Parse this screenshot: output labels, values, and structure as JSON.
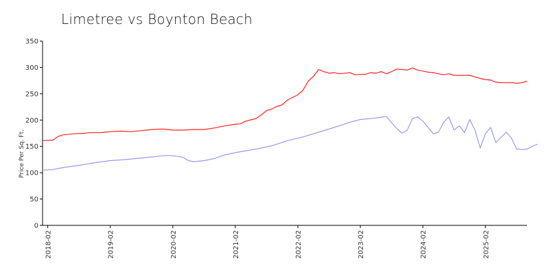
{
  "chart_data": {
    "type": "line",
    "title": "Limetree vs Boynton Beach",
    "xlabel": "",
    "ylabel": "Price Per Sq. Ft.",
    "ylim": [
      0,
      350
    ],
    "yticks": [
      0,
      50,
      100,
      150,
      200,
      250,
      300,
      350
    ],
    "xlim": [
      "2018-01",
      "2025-10"
    ],
    "xticks": [
      "2018-02",
      "2019-02",
      "2020-02",
      "2021-02",
      "2022-02",
      "2023-02",
      "2024-02",
      "2025-02"
    ],
    "grid": false,
    "legend": "none",
    "series": [
      {
        "color": "#ff2020",
        "points": [
          [
            "2018-01",
            161
          ],
          [
            "2018-03",
            162
          ],
          [
            "2018-04",
            169
          ],
          [
            "2018-05",
            172
          ],
          [
            "2018-07",
            174
          ],
          [
            "2018-09",
            175
          ],
          [
            "2018-10",
            176
          ],
          [
            "2018-12",
            176
          ],
          [
            "2019-01",
            177
          ],
          [
            "2019-02",
            178
          ],
          [
            "2019-04",
            179
          ],
          [
            "2019-06",
            178
          ],
          [
            "2019-08",
            180
          ],
          [
            "2019-10",
            182
          ],
          [
            "2019-12",
            183
          ],
          [
            "2020-02",
            181
          ],
          [
            "2020-04",
            181
          ],
          [
            "2020-06",
            182
          ],
          [
            "2020-08",
            182
          ],
          [
            "2020-10",
            185
          ],
          [
            "2020-12",
            189
          ],
          [
            "2021-02",
            192
          ],
          [
            "2021-03",
            193
          ],
          [
            "2021-04",
            198
          ],
          [
            "2021-06",
            203
          ],
          [
            "2021-07",
            210
          ],
          [
            "2021-08",
            218
          ],
          [
            "2021-09",
            221
          ],
          [
            "2021-10",
            226
          ],
          [
            "2021-11",
            229
          ],
          [
            "2021-12",
            238
          ],
          [
            "2022-02",
            248
          ],
          [
            "2022-03",
            257
          ],
          [
            "2022-04",
            274
          ],
          [
            "2022-05",
            283
          ],
          [
            "2022-06",
            296
          ],
          [
            "2022-07",
            292
          ],
          [
            "2022-08",
            289
          ],
          [
            "2022-09",
            290
          ],
          [
            "2022-10",
            288
          ],
          [
            "2022-12",
            290
          ],
          [
            "2023-01",
            286
          ],
          [
            "2023-03",
            287
          ],
          [
            "2023-04",
            290
          ],
          [
            "2023-05",
            289
          ],
          [
            "2023-06",
            292
          ],
          [
            "2023-07",
            288
          ],
          [
            "2023-08",
            292
          ],
          [
            "2023-09",
            297
          ],
          [
            "2023-11",
            295
          ],
          [
            "2023-12",
            299
          ],
          [
            "2024-01",
            295
          ],
          [
            "2024-03",
            291
          ],
          [
            "2024-04",
            290
          ],
          [
            "2024-05",
            288
          ],
          [
            "2024-06",
            286
          ],
          [
            "2024-07",
            288
          ],
          [
            "2024-08",
            285
          ],
          [
            "2024-10",
            285
          ],
          [
            "2024-11",
            285
          ],
          [
            "2025-01",
            279
          ],
          [
            "2025-02",
            277
          ],
          [
            "2025-03",
            276
          ],
          [
            "2025-04",
            272
          ],
          [
            "2025-05",
            271
          ],
          [
            "2025-06",
            271
          ],
          [
            "2025-07",
            271
          ],
          [
            "2025-08",
            270
          ],
          [
            "2025-09",
            271
          ],
          [
            "2025-10",
            274
          ]
        ]
      },
      {
        "color": "#9999ee",
        "points": [
          [
            "2018-01",
            105
          ],
          [
            "2018-03",
            106
          ],
          [
            "2018-05",
            110
          ],
          [
            "2018-08",
            114
          ],
          [
            "2018-11",
            119
          ],
          [
            "2019-02",
            123
          ],
          [
            "2019-05",
            125
          ],
          [
            "2019-08",
            128
          ],
          [
            "2019-11",
            131
          ],
          [
            "2020-01",
            133
          ],
          [
            "2020-03",
            131
          ],
          [
            "2020-04",
            129
          ],
          [
            "2020-05",
            123
          ],
          [
            "2020-06",
            121
          ],
          [
            "2020-08",
            123
          ],
          [
            "2020-10",
            127
          ],
          [
            "2020-12",
            134
          ],
          [
            "2021-03",
            140
          ],
          [
            "2021-06",
            145
          ],
          [
            "2021-09",
            151
          ],
          [
            "2021-12",
            161
          ],
          [
            "2022-03",
            168
          ],
          [
            "2022-06",
            177
          ],
          [
            "2022-09",
            186
          ],
          [
            "2022-12",
            196
          ],
          [
            "2023-02",
            201
          ],
          [
            "2023-05",
            204
          ],
          [
            "2023-07",
            207
          ],
          [
            "2023-08",
            195
          ],
          [
            "2023-09",
            184
          ],
          [
            "2023-10",
            175
          ],
          [
            "2023-11",
            181
          ],
          [
            "2023-12",
            203
          ],
          [
            "2024-01",
            206
          ],
          [
            "2024-02",
            198
          ],
          [
            "2024-03",
            186
          ],
          [
            "2024-04",
            174
          ],
          [
            "2024-05",
            177
          ],
          [
            "2024-06",
            196
          ],
          [
            "2024-07",
            206
          ],
          [
            "2024-08",
            181
          ],
          [
            "2024-09",
            189
          ],
          [
            "2024-10",
            176
          ],
          [
            "2024-11",
            201
          ],
          [
            "2024-12",
            181
          ],
          [
            "2025-01",
            147
          ],
          [
            "2025-02",
            174
          ],
          [
            "2025-03",
            186
          ],
          [
            "2025-04",
            157
          ],
          [
            "2025-05",
            167
          ],
          [
            "2025-06",
            177
          ],
          [
            "2025-07",
            166
          ],
          [
            "2025-08",
            145
          ],
          [
            "2025-09",
            144
          ],
          [
            "2025-10",
            145
          ],
          [
            "2025-11",
            150
          ],
          [
            "2025-12",
            154
          ]
        ]
      }
    ]
  }
}
